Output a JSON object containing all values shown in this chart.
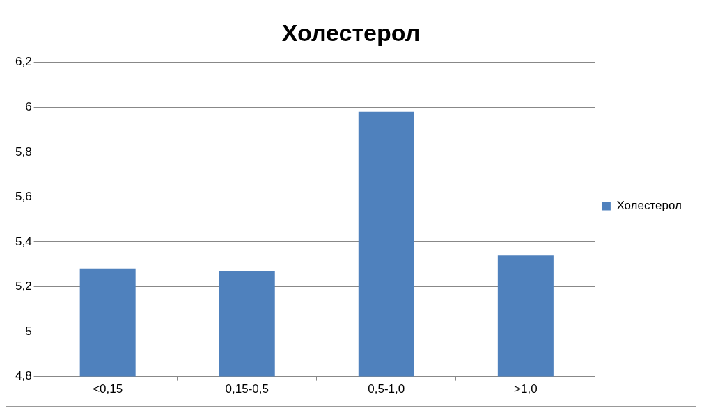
{
  "chart_data": {
    "type": "bar",
    "title": "Холестерол",
    "categories": [
      "<0,15",
      "0,15-0,5",
      "0,5-1,0",
      ">1,0"
    ],
    "series": [
      {
        "name": "Холестерол",
        "color": "#4f81bd",
        "values": [
          5.28,
          5.27,
          5.98,
          5.34
        ]
      }
    ],
    "ylim": [
      4.8,
      6.2
    ],
    "yticks": [
      {
        "value": 4.8,
        "label": "4,8"
      },
      5,
      {
        "value": 5.2,
        "label": "5,2"
      },
      {
        "value": 5.4,
        "label": "5,4"
      },
      {
        "value": 5.6,
        "label": "5,6"
      },
      {
        "value": 5.8,
        "label": "5,8"
      },
      6,
      {
        "value": 6.2,
        "label": "6,2"
      }
    ],
    "grid": "y",
    "legend": "right"
  }
}
